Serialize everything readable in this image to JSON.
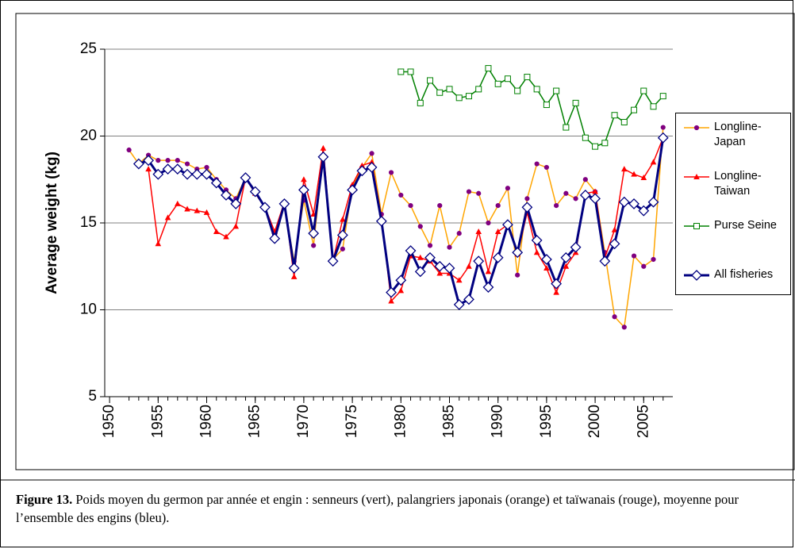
{
  "chart_data": {
    "type": "line",
    "y_label": "Average weight (kg)",
    "x": [
      1952,
      1953,
      1954,
      1955,
      1956,
      1957,
      1958,
      1959,
      1960,
      1961,
      1962,
      1963,
      1964,
      1965,
      1966,
      1967,
      1968,
      1969,
      1970,
      1971,
      1972,
      1973,
      1974,
      1975,
      1976,
      1977,
      1978,
      1979,
      1980,
      1981,
      1982,
      1983,
      1984,
      1985,
      1986,
      1987,
      1988,
      1989,
      1990,
      1991,
      1992,
      1993,
      1994,
      1995,
      1996,
      1997,
      1998,
      1999,
      2000,
      2001,
      2002,
      2003,
      2004,
      2005,
      2006,
      2007
    ],
    "xlim": [
      1949.5,
      2008
    ],
    "xticks": [
      1950,
      1955,
      1960,
      1965,
      1970,
      1975,
      1980,
      1985,
      1990,
      1995,
      2000,
      2005
    ],
    "ylim": [
      5,
      25
    ],
    "yticks": [
      5,
      10,
      15,
      20,
      25
    ],
    "grid": true,
    "legend": "right",
    "series": [
      {
        "name": "Longline-Japan",
        "color": "#ffa500",
        "marker": "circle",
        "marker_color": "#800080",
        "values": [
          19.2,
          18.4,
          18.9,
          18.6,
          18.6,
          18.6,
          18.4,
          18.1,
          18.2,
          17.5,
          16.9,
          16.4,
          17.6,
          16.8,
          15.9,
          14.3,
          16.0,
          12.8,
          16.3,
          13.7,
          18.9,
          12.9,
          13.5,
          17.1,
          18.2,
          19.0,
          15.5,
          17.9,
          16.6,
          16.0,
          14.8,
          13.7,
          16.0,
          13.6,
          14.4,
          16.8,
          16.7,
          15.0,
          16.0,
          17.0,
          12.0,
          16.4,
          18.4,
          18.2,
          16.0,
          16.7,
          16.4,
          17.5,
          16.8,
          13.3,
          9.6,
          9.0,
          13.1,
          12.5,
          12.9,
          20.5
        ]
      },
      {
        "name": "Longline-Taiwan",
        "color": "#ff0000",
        "marker": "triangle",
        "marker_color": "#ff0000",
        "values": [
          null,
          null,
          18.1,
          13.8,
          15.3,
          16.1,
          15.8,
          15.7,
          15.6,
          14.5,
          14.2,
          14.8,
          17.6,
          16.7,
          15.9,
          14.5,
          16.2,
          11.9,
          17.5,
          15.5,
          19.3,
          12.8,
          15.2,
          17.2,
          18.3,
          18.5,
          15.3,
          10.5,
          11.1,
          13.1,
          13.0,
          12.8,
          12.1,
          12.1,
          11.7,
          12.5,
          14.5,
          12.2,
          14.5,
          14.9,
          13.2,
          15.6,
          13.3,
          12.4,
          11.0,
          12.5,
          13.3,
          16.7,
          16.8,
          13.0,
          14.6,
          18.1,
          17.8,
          17.6,
          18.5,
          19.9
        ]
      },
      {
        "name": "Purse Seine",
        "color": "#008000",
        "marker": "square",
        "marker_color": "#008000",
        "values": [
          null,
          null,
          null,
          null,
          null,
          null,
          null,
          null,
          null,
          null,
          null,
          null,
          null,
          null,
          null,
          null,
          null,
          null,
          null,
          null,
          null,
          null,
          null,
          null,
          null,
          null,
          null,
          null,
          23.7,
          23.7,
          21.9,
          23.2,
          22.5,
          22.7,
          22.2,
          22.3,
          22.7,
          23.9,
          23.0,
          23.3,
          22.6,
          23.4,
          22.7,
          21.8,
          22.6,
          20.5,
          21.9,
          19.9,
          19.4,
          19.6,
          21.2,
          20.8,
          21.5,
          22.6,
          21.7,
          22.3
        ]
      },
      {
        "name": "All fisheries",
        "color": "#000080",
        "marker": "diamond",
        "marker_color": "#000080",
        "values": [
          null,
          18.4,
          18.6,
          17.8,
          18.1,
          18.1,
          17.8,
          17.8,
          17.8,
          17.3,
          16.6,
          16.1,
          17.6,
          16.8,
          15.9,
          14.1,
          16.1,
          12.4,
          16.9,
          14.4,
          18.8,
          12.8,
          14.3,
          16.9,
          18.0,
          18.2,
          15.1,
          11.0,
          11.7,
          13.4,
          12.2,
          13.0,
          12.5,
          12.4,
          10.3,
          10.6,
          12.8,
          11.3,
          13.0,
          14.9,
          13.3,
          15.9,
          14.0,
          12.9,
          11.5,
          13.0,
          13.6,
          16.6,
          16.4,
          12.8,
          13.8,
          16.2,
          16.1,
          15.7,
          16.2,
          19.9
        ]
      }
    ]
  },
  "caption": {
    "label": "Figure 13.",
    "text": "Poids moyen du germon par année et engin : senneurs (vert), palangriers japonais (orange) et taïwanais (rouge), moyenne pour l’ensemble des engins (bleu)."
  }
}
